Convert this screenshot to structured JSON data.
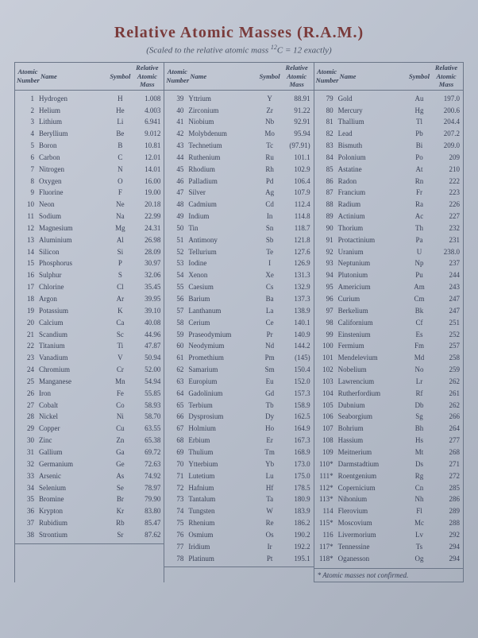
{
  "title": "Relative Atomic Masses (R.A.M.)",
  "subtitle_pre": "(Scaled to the relative atomic mass ",
  "subtitle_iso": "12",
  "subtitle_c": "C",
  "subtitle_post": " = 12 exactly)",
  "header": {
    "num": "Atomic Number",
    "name": "Name",
    "sym": "Symbol",
    "mass": "Relative Atomic Mass"
  },
  "footer_note": "* Atomic masses not confirmed.",
  "col1": [
    {
      "n": "1",
      "name": "Hydrogen",
      "s": "H",
      "m": "1.008"
    },
    {
      "n": "2",
      "name": "Helium",
      "s": "He",
      "m": "4.003"
    },
    {
      "n": "3",
      "name": "Lithium",
      "s": "Li",
      "m": "6.941"
    },
    {
      "n": "4",
      "name": "Beryllium",
      "s": "Be",
      "m": "9.012"
    },
    {
      "n": "5",
      "name": "Boron",
      "s": "B",
      "m": "10.81"
    },
    {
      "n": "6",
      "name": "Carbon",
      "s": "C",
      "m": "12.01"
    },
    {
      "n": "7",
      "name": "Nitrogen",
      "s": "N",
      "m": "14.01"
    },
    {
      "n": "8",
      "name": "Oxygen",
      "s": "O",
      "m": "16.00"
    },
    {
      "n": "9",
      "name": "Fluorine",
      "s": "F",
      "m": "19.00"
    },
    {
      "n": "10",
      "name": "Neon",
      "s": "Ne",
      "m": "20.18"
    },
    {
      "n": "11",
      "name": "Sodium",
      "s": "Na",
      "m": "22.99"
    },
    {
      "n": "12",
      "name": "Magnesium",
      "s": "Mg",
      "m": "24.31"
    },
    {
      "n": "13",
      "name": "Aluminium",
      "s": "Al",
      "m": "26.98"
    },
    {
      "n": "14",
      "name": "Silicon",
      "s": "Si",
      "m": "28.09"
    },
    {
      "n": "15",
      "name": "Phosphorus",
      "s": "P",
      "m": "30.97"
    },
    {
      "n": "16",
      "name": "Sulphur",
      "s": "S",
      "m": "32.06"
    },
    {
      "n": "17",
      "name": "Chlorine",
      "s": "Cl",
      "m": "35.45"
    },
    {
      "n": "18",
      "name": "Argon",
      "s": "Ar",
      "m": "39.95"
    },
    {
      "n": "19",
      "name": "Potassium",
      "s": "K",
      "m": "39.10"
    },
    {
      "n": "20",
      "name": "Calcium",
      "s": "Ca",
      "m": "40.08"
    },
    {
      "n": "21",
      "name": "Scandium",
      "s": "Sc",
      "m": "44.96"
    },
    {
      "n": "22",
      "name": "Titanium",
      "s": "Ti",
      "m": "47.87"
    },
    {
      "n": "23",
      "name": "Vanadium",
      "s": "V",
      "m": "50.94"
    },
    {
      "n": "24",
      "name": "Chromium",
      "s": "Cr",
      "m": "52.00"
    },
    {
      "n": "25",
      "name": "Manganese",
      "s": "Mn",
      "m": "54.94"
    },
    {
      "n": "26",
      "name": "Iron",
      "s": "Fe",
      "m": "55.85"
    },
    {
      "n": "27",
      "name": "Cobalt",
      "s": "Co",
      "m": "58.93"
    },
    {
      "n": "28",
      "name": "Nickel",
      "s": "Ni",
      "m": "58.70"
    },
    {
      "n": "29",
      "name": "Copper",
      "s": "Cu",
      "m": "63.55"
    },
    {
      "n": "30",
      "name": "Zinc",
      "s": "Zn",
      "m": "65.38"
    },
    {
      "n": "31",
      "name": "Gallium",
      "s": "Ga",
      "m": "69.72"
    },
    {
      "n": "32",
      "name": "Germanium",
      "s": "Ge",
      "m": "72.63"
    },
    {
      "n": "33",
      "name": "Arsenic",
      "s": "As",
      "m": "74.92"
    },
    {
      "n": "34",
      "name": "Selenium",
      "s": "Se",
      "m": "78.97"
    },
    {
      "n": "35",
      "name": "Bromine",
      "s": "Br",
      "m": "79.90"
    },
    {
      "n": "36",
      "name": "Krypton",
      "s": "Kr",
      "m": "83.80"
    },
    {
      "n": "37",
      "name": "Rubidium",
      "s": "Rb",
      "m": "85.47"
    },
    {
      "n": "38",
      "name": "Strontium",
      "s": "Sr",
      "m": "87.62"
    }
  ],
  "col2": [
    {
      "n": "39",
      "name": "Yttrium",
      "s": "Y",
      "m": "88.91"
    },
    {
      "n": "40",
      "name": "Zirconium",
      "s": "Zr",
      "m": "91.22"
    },
    {
      "n": "41",
      "name": "Niobium",
      "s": "Nb",
      "m": "92.91"
    },
    {
      "n": "42",
      "name": "Molybdenum",
      "s": "Mo",
      "m": "95.94"
    },
    {
      "n": "43",
      "name": "Technetium",
      "s": "Tc",
      "m": "(97.91)"
    },
    {
      "n": "44",
      "name": "Ruthenium",
      "s": "Ru",
      "m": "101.1"
    },
    {
      "n": "45",
      "name": "Rhodium",
      "s": "Rh",
      "m": "102.9"
    },
    {
      "n": "46",
      "name": "Palladium",
      "s": "Pd",
      "m": "106.4"
    },
    {
      "n": "47",
      "name": "Silver",
      "s": "Ag",
      "m": "107.9"
    },
    {
      "n": "48",
      "name": "Cadmium",
      "s": "Cd",
      "m": "112.4"
    },
    {
      "n": "49",
      "name": "Indium",
      "s": "In",
      "m": "114.8"
    },
    {
      "n": "50",
      "name": "Tin",
      "s": "Sn",
      "m": "118.7"
    },
    {
      "n": "51",
      "name": "Antimony",
      "s": "Sb",
      "m": "121.8"
    },
    {
      "n": "52",
      "name": "Tellurium",
      "s": "Te",
      "m": "127.6"
    },
    {
      "n": "53",
      "name": "Iodine",
      "s": "I",
      "m": "126.9"
    },
    {
      "n": "54",
      "name": "Xenon",
      "s": "Xe",
      "m": "131.3"
    },
    {
      "n": "55",
      "name": "Caesium",
      "s": "Cs",
      "m": "132.9"
    },
    {
      "n": "56",
      "name": "Barium",
      "s": "Ba",
      "m": "137.3"
    },
    {
      "n": "57",
      "name": "Lanthanum",
      "s": "La",
      "m": "138.9"
    },
    {
      "n": "58",
      "name": "Cerium",
      "s": "Ce",
      "m": "140.1"
    },
    {
      "n": "59",
      "name": "Praseodymium",
      "s": "Pr",
      "m": "140.9"
    },
    {
      "n": "60",
      "name": "Neodymium",
      "s": "Nd",
      "m": "144.2"
    },
    {
      "n": "61",
      "name": "Promethium",
      "s": "Pm",
      "m": "(145)"
    },
    {
      "n": "62",
      "name": "Samarium",
      "s": "Sm",
      "m": "150.4"
    },
    {
      "n": "63",
      "name": "Europium",
      "s": "Eu",
      "m": "152.0"
    },
    {
      "n": "64",
      "name": "Gadolinium",
      "s": "Gd",
      "m": "157.3"
    },
    {
      "n": "65",
      "name": "Terbium",
      "s": "Tb",
      "m": "158.9"
    },
    {
      "n": "66",
      "name": "Dysprosium",
      "s": "Dy",
      "m": "162.5"
    },
    {
      "n": "67",
      "name": "Holmium",
      "s": "Ho",
      "m": "164.9"
    },
    {
      "n": "68",
      "name": "Erbium",
      "s": "Er",
      "m": "167.3"
    },
    {
      "n": "69",
      "name": "Thulium",
      "s": "Tm",
      "m": "168.9"
    },
    {
      "n": "70",
      "name": "Ytterbium",
      "s": "Yb",
      "m": "173.0"
    },
    {
      "n": "71",
      "name": "Lutetium",
      "s": "Lu",
      "m": "175.0"
    },
    {
      "n": "72",
      "name": "Hafnium",
      "s": "Hf",
      "m": "178.5"
    },
    {
      "n": "73",
      "name": "Tantalum",
      "s": "Ta",
      "m": "180.9"
    },
    {
      "n": "74",
      "name": "Tungsten",
      "s": "W",
      "m": "183.9"
    },
    {
      "n": "75",
      "name": "Rhenium",
      "s": "Re",
      "m": "186.2"
    },
    {
      "n": "76",
      "name": "Osmium",
      "s": "Os",
      "m": "190.2"
    },
    {
      "n": "77",
      "name": "Iridium",
      "s": "Ir",
      "m": "192.2"
    },
    {
      "n": "78",
      "name": "Platinum",
      "s": "Pt",
      "m": "195.1"
    }
  ],
  "col3": [
    {
      "n": "79",
      "name": "Gold",
      "s": "Au",
      "m": "197.0"
    },
    {
      "n": "80",
      "name": "Mercury",
      "s": "Hg",
      "m": "200.6"
    },
    {
      "n": "81",
      "name": "Thallium",
      "s": "Tl",
      "m": "204.4"
    },
    {
      "n": "82",
      "name": "Lead",
      "s": "Pb",
      "m": "207.2"
    },
    {
      "n": "83",
      "name": "Bismuth",
      "s": "Bi",
      "m": "209.0"
    },
    {
      "n": "84",
      "name": "Polonium",
      "s": "Po",
      "m": "209"
    },
    {
      "n": "85",
      "name": "Astatine",
      "s": "At",
      "m": "210"
    },
    {
      "n": "86",
      "name": "Radon",
      "s": "Rn",
      "m": "222"
    },
    {
      "n": "87",
      "name": "Francium",
      "s": "Fr",
      "m": "223"
    },
    {
      "n": "88",
      "name": "Radium",
      "s": "Ra",
      "m": "226"
    },
    {
      "n": "89",
      "name": "Actinium",
      "s": "Ac",
      "m": "227"
    },
    {
      "n": "90",
      "name": "Thorium",
      "s": "Th",
      "m": "232"
    },
    {
      "n": "91",
      "name": "Protactinium",
      "s": "Pa",
      "m": "231"
    },
    {
      "n": "92",
      "name": "Uranium",
      "s": "U",
      "m": "238.0"
    },
    {
      "n": "93",
      "name": "Neptunium",
      "s": "Np",
      "m": "237"
    },
    {
      "n": "94",
      "name": "Plutonium",
      "s": "Pu",
      "m": "244"
    },
    {
      "n": "95",
      "name": "Americium",
      "s": "Am",
      "m": "243"
    },
    {
      "n": "96",
      "name": "Curium",
      "s": "Cm",
      "m": "247"
    },
    {
      "n": "97",
      "name": "Berkelium",
      "s": "Bk",
      "m": "247"
    },
    {
      "n": "98",
      "name": "Californium",
      "s": "Cf",
      "m": "251"
    },
    {
      "n": "99",
      "name": "Einstenium",
      "s": "Es",
      "m": "252"
    },
    {
      "n": "100",
      "name": "Fermium",
      "s": "Fm",
      "m": "257"
    },
    {
      "n": "101",
      "name": "Mendelevium",
      "s": "Md",
      "m": "258"
    },
    {
      "n": "102",
      "name": "Nobelium",
      "s": "No",
      "m": "259"
    },
    {
      "n": "103",
      "name": "Lawrencium",
      "s": "Lr",
      "m": "262"
    },
    {
      "n": "104",
      "name": "Rutherfordium",
      "s": "Rf",
      "m": "261"
    },
    {
      "n": "105",
      "name": "Dubnium",
      "s": "Db",
      "m": "262"
    },
    {
      "n": "106",
      "name": "Seaborgium",
      "s": "Sg",
      "m": "266"
    },
    {
      "n": "107",
      "name": "Bohrium",
      "s": "Bh",
      "m": "264"
    },
    {
      "n": "108",
      "name": "Hassium",
      "s": "Hs",
      "m": "277"
    },
    {
      "n": "109",
      "name": "Meitnerium",
      "s": "Mt",
      "m": "268"
    },
    {
      "n": "110*",
      "name": "Darmstadtium",
      "s": "Ds",
      "m": "271"
    },
    {
      "n": "111*",
      "name": "Roentgenium",
      "s": "Rg",
      "m": "272"
    },
    {
      "n": "112*",
      "name": "Copernicium",
      "s": "Cn",
      "m": "285"
    },
    {
      "n": "113*",
      "name": "Nihonium",
      "s": "Nh",
      "m": "286"
    },
    {
      "n": "114",
      "name": "Flerovium",
      "s": "Fl",
      "m": "289"
    },
    {
      "n": "115*",
      "name": "Moscovium",
      "s": "Mc",
      "m": "288"
    },
    {
      "n": "116",
      "name": "Livermorium",
      "s": "Lv",
      "m": "292"
    },
    {
      "n": "117*",
      "name": "Tennessine",
      "s": "Ts",
      "m": "294"
    },
    {
      "n": "118*",
      "name": "Oganesson",
      "s": "Og",
      "m": "294"
    }
  ]
}
